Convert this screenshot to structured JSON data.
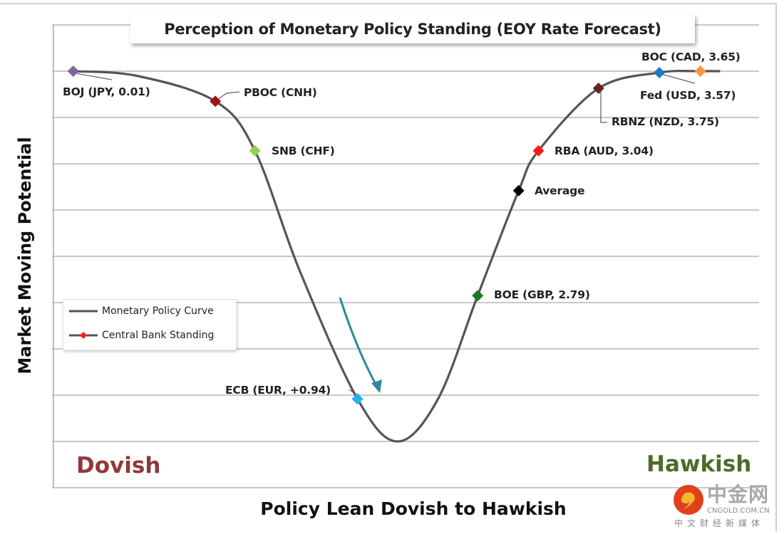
{
  "chart_data": {
    "type": "line",
    "title": "Perception of Monetary Policy Standing (EOY Rate Forecast)",
    "xlabel": "Policy Lean Dovish to Hawkish",
    "ylabel": "Market Moving Potential",
    "xlim": [
      0,
      100
    ],
    "ylim": [
      -1,
      9
    ],
    "grid": true,
    "x_end_labels": {
      "left": "Dovish",
      "right": "Hawkish"
    },
    "legend": {
      "placement": "bottom-left",
      "entries": [
        "Monetary Policy Curve",
        "Central Bank Standing"
      ]
    },
    "curve": {
      "name": "Monetary Policy Curve",
      "points": [
        [
          3,
          8
        ],
        [
          12,
          7.9
        ],
        [
          23.1,
          7.35
        ],
        [
          28.7,
          6.28
        ],
        [
          35,
          3.7
        ],
        [
          43.2,
          0.92
        ],
        [
          48.9,
          0
        ],
        [
          54.6,
          0.92
        ],
        [
          60.2,
          3.15
        ],
        [
          66,
          5.42
        ],
        [
          68.8,
          6.28
        ],
        [
          77.3,
          7.63
        ],
        [
          85.9,
          7.97
        ],
        [
          91.7,
          8
        ],
        [
          94.5,
          8
        ]
      ]
    },
    "markers": [
      {
        "label": "BOJ (JPY, 0.01)",
        "x": 3.0,
        "y": 8.0,
        "color": "#8064a2"
      },
      {
        "label": "PBOC (CNH)",
        "x": 23.1,
        "y": 7.35,
        "color": "#a50f0f"
      },
      {
        "label": "SNB (CHF)",
        "x": 28.7,
        "y": 6.28,
        "color": "#92d050"
      },
      {
        "label": "ECB (EUR, +0.94)",
        "x": 43.2,
        "y": 0.92,
        "color": "#1fb4f0"
      },
      {
        "label": "BOE (GBP, 2.79)",
        "x": 60.2,
        "y": 3.15,
        "color": "#1d7a1d"
      },
      {
        "label": "Average",
        "x": 66.0,
        "y": 5.42,
        "color": "#000000"
      },
      {
        "label": "RBA (AUD, 3.04)",
        "x": 68.8,
        "y": 6.28,
        "color": "#ff1a1a"
      },
      {
        "label": "RBNZ (NZD, 3.75)",
        "x": 77.3,
        "y": 7.63,
        "color": "#632523"
      },
      {
        "label": "Fed (USD, 3.57)",
        "x": 85.9,
        "y": 7.97,
        "color": "#1f78c8"
      },
      {
        "label": "BOC (CAD, 3.65)",
        "x": 91.7,
        "y": 8.0,
        "color": "#f79646"
      }
    ]
  },
  "watermark": {
    "name": "中金网",
    "domain": "CNGOLD.COM.CN",
    "tagline": "中文财经新媒体"
  }
}
